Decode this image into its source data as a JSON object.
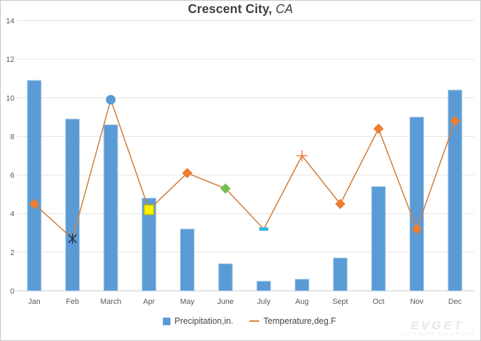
{
  "title": {
    "main": "Crescent City,",
    "suffix": " CA"
  },
  "legend": {
    "precipitation_label": "Precipitation,in.",
    "precipitation_color": "#5B9BD5",
    "temperature_label": "Temperature,deg.F",
    "temperature_color": "#D0803E"
  },
  "watermark": {
    "line1": "EVGET",
    "line2": "SOFTWARE SOLUTIONS"
  },
  "chart_data": {
    "type": "bar",
    "subtype": "bar-with-line-overlay",
    "title": "Crescent City, CA",
    "categories": [
      "Jan",
      "Feb",
      "March",
      "Apr",
      "May",
      "June",
      "July",
      "Aug",
      "Sept",
      "Oct",
      "Nov",
      "Dec"
    ],
    "series": [
      {
        "name": "Precipitation,in.",
        "type": "bar",
        "color": "#5B9BD5",
        "border_color": "#A3C7E8",
        "values": [
          10.9,
          8.9,
          8.6,
          4.8,
          3.2,
          1.4,
          0.5,
          0.6,
          1.7,
          5.4,
          9.0,
          10.4
        ]
      },
      {
        "name": "Temperature,deg.F",
        "type": "line",
        "color": "#D0803E",
        "values": [
          4.5,
          2.7,
          9.9,
          4.2,
          6.1,
          5.3,
          3.2,
          7.0,
          4.5,
          8.4,
          3.2,
          8.8
        ],
        "point_markers": [
          {
            "shape": "diamond",
            "color": "#ED7D31"
          },
          {
            "shape": "asterisk",
            "color": "#1F3250"
          },
          {
            "shape": "circle",
            "color": "#5B9BD5"
          },
          {
            "shape": "square",
            "color": "#FFF100",
            "stroke": "#BFB800"
          },
          {
            "shape": "diamond",
            "color": "#ED7D31"
          },
          {
            "shape": "diamond",
            "color": "#77BC4F"
          },
          {
            "shape": "dash",
            "color": "#2FB6D9"
          },
          {
            "shape": "plus",
            "color": "#ED7D31"
          },
          {
            "shape": "diamond",
            "color": "#ED7D31"
          },
          {
            "shape": "diamond",
            "color": "#ED7D31"
          },
          {
            "shape": "diamond",
            "color": "#ED7D31"
          },
          {
            "shape": "diamond",
            "color": "#ED7D31"
          }
        ]
      }
    ],
    "ylim": [
      0,
      14
    ],
    "yticks": [
      0,
      2,
      4,
      6,
      8,
      10,
      12,
      14
    ],
    "grid": true,
    "gridline_color": "#e2e2e2",
    "baseline_color": "#c9c9c9",
    "axis_text_color": "#595959",
    "legend_position": "bottom"
  }
}
